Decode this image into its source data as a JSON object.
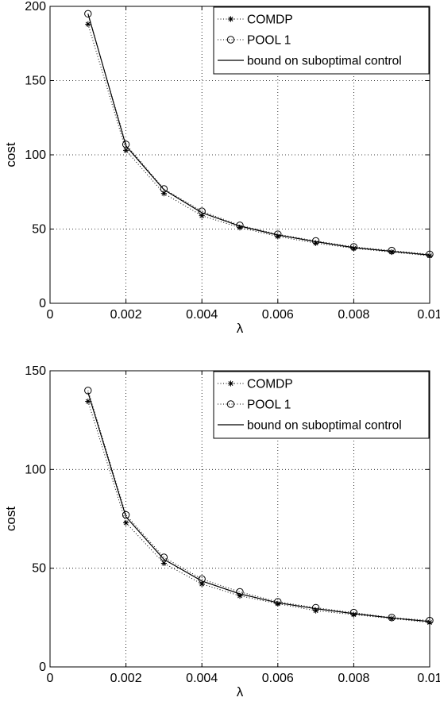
{
  "chart_data": [
    {
      "type": "line",
      "xlabel": "λ",
      "ylabel": "cost",
      "xlim": [
        0,
        0.01
      ],
      "ylim": [
        0,
        200
      ],
      "xticks": [
        0,
        0.002,
        0.004,
        0.006,
        0.008,
        0.01
      ],
      "xtick_labels": [
        "0",
        "0.002",
        "0.004",
        "0.006",
        "0.008",
        "0.01"
      ],
      "yticks": [
        0,
        50,
        100,
        150,
        200
      ],
      "ytick_labels": [
        "0",
        "50",
        "100",
        "150",
        "200"
      ],
      "grid": true,
      "legend_position": "top-right",
      "x": [
        0.001,
        0.002,
        0.003,
        0.004,
        0.005,
        0.006,
        0.007,
        0.008,
        0.009,
        0.01
      ],
      "series": [
        {
          "name": "COMDP",
          "style": "dotted-star",
          "values": [
            188,
            103,
            74,
            59,
            51,
            45,
            40.5,
            37,
            34.5,
            32
          ]
        },
        {
          "name": "POOL 1",
          "style": "dotted-circle",
          "values": [
            195,
            107,
            77,
            62,
            52.5,
            46.5,
            42,
            38,
            35.5,
            33
          ]
        },
        {
          "name": "bound on suboptimal control",
          "style": "solid",
          "values": [
            195,
            106,
            76.5,
            61,
            52,
            46,
            41.5,
            37.5,
            35,
            32.5
          ]
        }
      ]
    },
    {
      "type": "line",
      "xlabel": "λ",
      "ylabel": "cost",
      "xlim": [
        0,
        0.01
      ],
      "ylim": [
        0,
        150
      ],
      "xticks": [
        0,
        0.002,
        0.004,
        0.006,
        0.008,
        0.01
      ],
      "xtick_labels": [
        "0",
        "0.002",
        "0.004",
        "0.006",
        "0.008",
        "0.01"
      ],
      "yticks": [
        0,
        50,
        100,
        150
      ],
      "ytick_labels": [
        "0",
        "50",
        "100",
        "150"
      ],
      "grid": true,
      "legend_position": "top-right",
      "x": [
        0.001,
        0.002,
        0.003,
        0.004,
        0.005,
        0.006,
        0.007,
        0.008,
        0.009,
        0.01
      ],
      "series": [
        {
          "name": "COMDP",
          "style": "dotted-star",
          "values": [
            134.5,
            73,
            52.5,
            42,
            36,
            32,
            28.5,
            26.5,
            24.5,
            22.5
          ]
        },
        {
          "name": "POOL 1",
          "style": "dotted-circle",
          "values": [
            140,
            77,
            55.5,
            44.5,
            38,
            33,
            30,
            27.5,
            25,
            23.5
          ]
        },
        {
          "name": "bound on suboptimal control",
          "style": "solid",
          "values": [
            139,
            76,
            54.5,
            43.5,
            37,
            32.5,
            29.5,
            27,
            24.8,
            23
          ]
        }
      ]
    }
  ]
}
